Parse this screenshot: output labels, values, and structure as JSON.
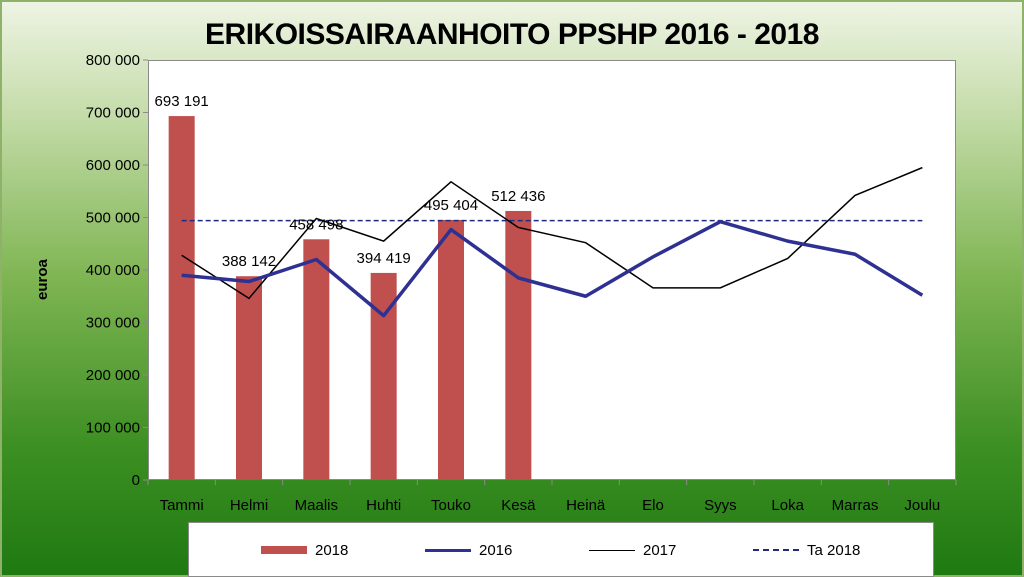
{
  "chart_data": {
    "type": "bar",
    "title": "ERIKOISSAIRAANHOITO PPSHP 2016 - 2018",
    "xlabel": "",
    "ylabel": "euroa",
    "ylim": [
      0,
      800000
    ],
    "yticks": [
      0,
      100000,
      200000,
      300000,
      400000,
      500000,
      600000,
      700000,
      800000
    ],
    "ytick_labels": [
      "0",
      "100 000",
      "200 000",
      "300 000",
      "400 000",
      "500 000",
      "600 000",
      "700 000",
      "800 000"
    ],
    "categories": [
      "Tammi",
      "Helmi",
      "Maalis",
      "Huhti",
      "Touko",
      "Kesä",
      "Heinä",
      "Elo",
      "Syys",
      "Loka",
      "Marras",
      "Joulu"
    ],
    "series": [
      {
        "name": "2018",
        "type": "bar",
        "color": "#c0504d",
        "values": [
          693191,
          388142,
          458498,
          394419,
          495404,
          512436,
          null,
          null,
          null,
          null,
          null,
          null
        ],
        "data_labels": [
          "693 191",
          "388 142",
          "458 498",
          "394 419",
          "495 404",
          "512 436"
        ]
      },
      {
        "name": "2016",
        "type": "line",
        "color": "#2e3192",
        "values": [
          390000,
          378000,
          420000,
          313000,
          477000,
          385000,
          350000,
          425000,
          492000,
          455000,
          430000,
          352000
        ]
      },
      {
        "name": "2017",
        "type": "line",
        "color": "#000000",
        "values": [
          428000,
          346000,
          498000,
          455000,
          568000,
          481000,
          452000,
          366000,
          366000,
          422000,
          542000,
          595000
        ]
      },
      {
        "name": "Ta 2018",
        "type": "dashed-line",
        "color": "#1f2a80",
        "values": [
          494000,
          494000,
          494000,
          494000,
          494000,
          494000,
          494000,
          494000,
          494000,
          494000,
          494000,
          494000
        ]
      }
    ],
    "legend": [
      "2018",
      "2016",
      "2017",
      "Ta 2018"
    ],
    "legend_position": "bottom",
    "grid": false
  }
}
